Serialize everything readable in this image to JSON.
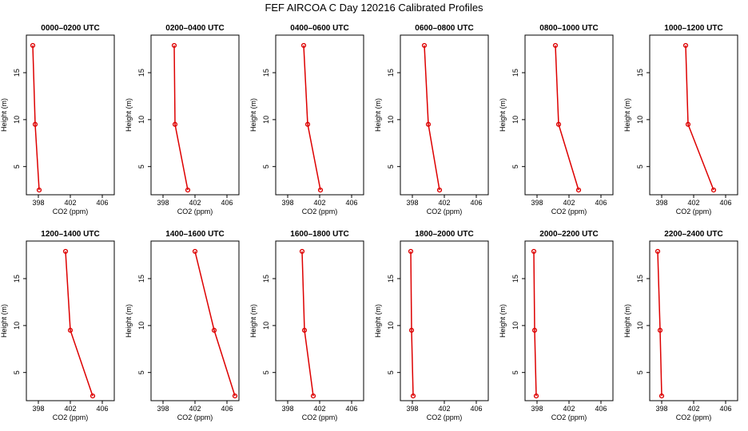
{
  "title": "FEF AIRCOA C  Day 120216  Calibrated Profiles",
  "colors": {
    "series": "#dd0000",
    "axis": "#000000"
  },
  "chart_data": [
    {
      "type": "line",
      "title": "0000–0200 UTC",
      "xlabel": "CO2 (ppm)",
      "ylabel": "Height (m)",
      "xlim": [
        396.5,
        407.5
      ],
      "ylim": [
        2,
        19
      ],
      "xticks": [
        398,
        402,
        406
      ],
      "yticks": [
        5,
        10,
        15
      ],
      "x": [
        397.3,
        397.6,
        398.1
      ],
      "y": [
        17.9,
        9.5,
        2.5
      ]
    },
    {
      "type": "line",
      "title": "0200–0400 UTC",
      "xlabel": "CO2 (ppm)",
      "ylabel": "Height (m)",
      "xlim": [
        396.5,
        407.5
      ],
      "ylim": [
        2,
        19
      ],
      "xticks": [
        398,
        402,
        406
      ],
      "yticks": [
        5,
        10,
        15
      ],
      "x": [
        399.4,
        399.5,
        401.1
      ],
      "y": [
        17.9,
        9.5,
        2.5
      ]
    },
    {
      "type": "line",
      "title": "0400–0600 UTC",
      "xlabel": "CO2 (ppm)",
      "ylabel": "Height (m)",
      "xlim": [
        396.5,
        407.5
      ],
      "ylim": [
        2,
        19
      ],
      "xticks": [
        398,
        402,
        406
      ],
      "yticks": [
        5,
        10,
        15
      ],
      "x": [
        400.0,
        400.5,
        402.1
      ],
      "y": [
        17.9,
        9.5,
        2.5
      ]
    },
    {
      "type": "line",
      "title": "0600–0800 UTC",
      "xlabel": "CO2 (ppm)",
      "ylabel": "Height (m)",
      "xlim": [
        396.5,
        407.5
      ],
      "ylim": [
        2,
        19
      ],
      "xticks": [
        398,
        402,
        406
      ],
      "yticks": [
        5,
        10,
        15
      ],
      "x": [
        399.5,
        400.0,
        401.4
      ],
      "y": [
        17.9,
        9.5,
        2.5
      ]
    },
    {
      "type": "line",
      "title": "0800–1000 UTC",
      "xlabel": "CO2 (ppm)",
      "ylabel": "Height (m)",
      "xlim": [
        396.5,
        407.5
      ],
      "ylim": [
        2,
        19
      ],
      "xticks": [
        398,
        402,
        406
      ],
      "yticks": [
        5,
        10,
        15
      ],
      "x": [
        400.3,
        400.7,
        403.2
      ],
      "y": [
        17.9,
        9.5,
        2.5
      ]
    },
    {
      "type": "line",
      "title": "1000–1200 UTC",
      "xlabel": "CO2 (ppm)",
      "ylabel": "Height (m)",
      "xlim": [
        396.5,
        407.5
      ],
      "ylim": [
        2,
        19
      ],
      "xticks": [
        398,
        402,
        406
      ],
      "yticks": [
        5,
        10,
        15
      ],
      "x": [
        401.0,
        401.3,
        404.5
      ],
      "y": [
        17.9,
        9.5,
        2.5
      ]
    },
    {
      "type": "line",
      "title": "1200–1400 UTC",
      "xlabel": "CO2 (ppm)",
      "ylabel": "Height (m)",
      "xlim": [
        396.5,
        407.5
      ],
      "ylim": [
        2,
        19
      ],
      "xticks": [
        398,
        402,
        406
      ],
      "yticks": [
        5,
        10,
        15
      ],
      "x": [
        401.4,
        402.0,
        404.8
      ],
      "y": [
        17.9,
        9.5,
        2.5
      ]
    },
    {
      "type": "line",
      "title": "1400–1600 UTC",
      "xlabel": "CO2 (ppm)",
      "ylabel": "Height (m)",
      "xlim": [
        396.5,
        407.5
      ],
      "ylim": [
        2,
        19
      ],
      "xticks": [
        398,
        402,
        406
      ],
      "yticks": [
        5,
        10,
        15
      ],
      "x": [
        402.0,
        404.4,
        407.0
      ],
      "y": [
        17.9,
        9.5,
        2.5
      ]
    },
    {
      "type": "line",
      "title": "1600–1800 UTC",
      "xlabel": "CO2 (ppm)",
      "ylabel": "Height (m)",
      "xlim": [
        396.5,
        407.5
      ],
      "ylim": [
        2,
        19
      ],
      "xticks": [
        398,
        402,
        406
      ],
      "yticks": [
        5,
        10,
        15
      ],
      "x": [
        399.8,
        400.1,
        401.2
      ],
      "y": [
        17.9,
        9.5,
        2.5
      ]
    },
    {
      "type": "line",
      "title": "1800–2000 UTC",
      "xlabel": "CO2 (ppm)",
      "ylabel": "Height (m)",
      "xlim": [
        396.5,
        407.5
      ],
      "ylim": [
        2,
        19
      ],
      "xticks": [
        398,
        402,
        406
      ],
      "yticks": [
        5,
        10,
        15
      ],
      "x": [
        397.8,
        397.9,
        398.1
      ],
      "y": [
        17.9,
        9.5,
        2.5
      ]
    },
    {
      "type": "line",
      "title": "2000–2200 UTC",
      "xlabel": "CO2 (ppm)",
      "ylabel": "Height (m)",
      "xlim": [
        396.5,
        407.5
      ],
      "ylim": [
        2,
        19
      ],
      "xticks": [
        398,
        402,
        406
      ],
      "yticks": [
        5,
        10,
        15
      ],
      "x": [
        397.6,
        397.7,
        397.9
      ],
      "y": [
        17.9,
        9.5,
        2.5
      ]
    },
    {
      "type": "line",
      "title": "2200–2400 UTC",
      "xlabel": "CO2 (ppm)",
      "ylabel": "Height (m)",
      "xlim": [
        396.5,
        407.5
      ],
      "ylim": [
        2,
        19
      ],
      "xticks": [
        398,
        402,
        406
      ],
      "yticks": [
        5,
        10,
        15
      ],
      "x": [
        397.5,
        397.8,
        398.0
      ],
      "y": [
        17.9,
        9.5,
        2.5
      ]
    }
  ]
}
